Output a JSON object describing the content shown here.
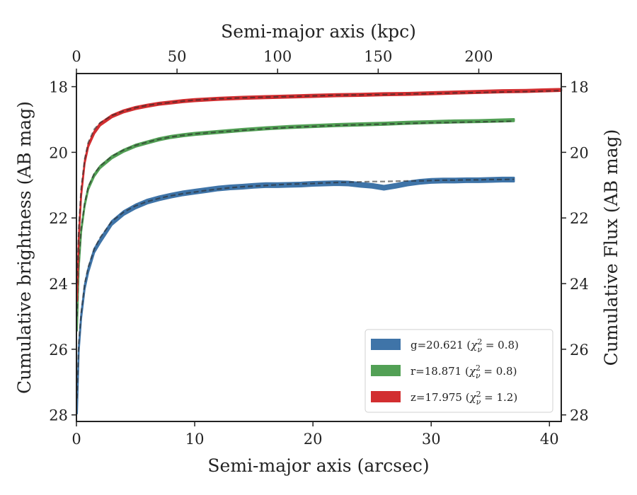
{
  "chart_data": {
    "type": "line",
    "xlabel": "Semi-major axis (arcsec)",
    "ylabel": "Cumulative brightness (AB mag)",
    "x2label": "Semi-major axis (kpc)",
    "y2label": "Cumulative Flux (AB mag)",
    "xlim": [
      0,
      41
    ],
    "ylim": [
      28.2,
      17.6
    ],
    "x2lim": [
      0,
      241
    ],
    "xticks": [
      0,
      10,
      20,
      30,
      40
    ],
    "x2ticks": [
      0,
      50,
      100,
      150,
      200
    ],
    "yticks": [
      18,
      20,
      22,
      24,
      26,
      28
    ],
    "y_inverted": true,
    "grid": false,
    "legend_position": "lower-right",
    "series": [
      {
        "name": "g=20.621",
        "chi2": "0.8",
        "color": "#3f74a8",
        "band_halfwidth": 0.06,
        "x": [
          0.05,
          0.2,
          0.4,
          0.7,
          1,
          1.5,
          2,
          3,
          4,
          5,
          6,
          7,
          8,
          9,
          10,
          11,
          12,
          13,
          14,
          15,
          16,
          17,
          18,
          19,
          20,
          21,
          22,
          23,
          24,
          25,
          26,
          27,
          28,
          29,
          30,
          31,
          32,
          33,
          34,
          35,
          36,
          37
        ],
        "y": [
          27.9,
          26.0,
          25.0,
          24.1,
          23.6,
          23.0,
          22.7,
          22.15,
          21.85,
          21.65,
          21.5,
          21.4,
          21.32,
          21.25,
          21.2,
          21.15,
          21.1,
          21.07,
          21.05,
          21.02,
          21.0,
          21.0,
          20.99,
          20.98,
          20.96,
          20.95,
          20.94,
          20.95,
          20.99,
          21.02,
          21.08,
          21.02,
          20.95,
          20.9,
          20.87,
          20.86,
          20.86,
          20.85,
          20.85,
          20.84,
          20.83,
          20.83
        ],
        "model_y": [
          27.5,
          25.8,
          24.9,
          24.0,
          23.5,
          22.95,
          22.6,
          22.1,
          21.82,
          21.63,
          21.5,
          21.4,
          21.32,
          21.26,
          21.21,
          21.16,
          21.12,
          21.08,
          21.05,
          21.03,
          21.01,
          20.99,
          20.97,
          20.96,
          20.95,
          20.93,
          20.92,
          20.91,
          20.9,
          20.89,
          20.89,
          20.88,
          20.87,
          20.87,
          20.86,
          20.85,
          20.85,
          20.84,
          20.84,
          20.83,
          20.83,
          20.82
        ]
      },
      {
        "name": "r=18.871",
        "chi2": "0.8",
        "color": "#52a055",
        "band_halfwidth": 0.035,
        "x": [
          0.05,
          0.2,
          0.4,
          0.7,
          1,
          1.5,
          2,
          3,
          4,
          5,
          6,
          7,
          8,
          9,
          10,
          12,
          14,
          16,
          18,
          20,
          22,
          24,
          26,
          28,
          30,
          32,
          34,
          36,
          37
        ],
        "y": [
          25.4,
          23.5,
          22.4,
          21.6,
          21.1,
          20.7,
          20.45,
          20.15,
          19.95,
          19.8,
          19.7,
          19.6,
          19.53,
          19.48,
          19.44,
          19.38,
          19.32,
          19.27,
          19.23,
          19.2,
          19.17,
          19.15,
          19.13,
          19.1,
          19.08,
          19.06,
          19.05,
          19.03,
          19.02
        ],
        "model_y": [
          25.0,
          23.3,
          22.3,
          21.55,
          21.05,
          20.65,
          20.42,
          20.12,
          19.93,
          19.79,
          19.69,
          19.6,
          19.53,
          19.48,
          19.44,
          19.38,
          19.33,
          19.28,
          19.24,
          19.21,
          19.18,
          19.16,
          19.14,
          19.12,
          19.1,
          19.09,
          19.07,
          19.06,
          19.05
        ]
      },
      {
        "name": "z=17.975",
        "chi2": "1.2",
        "color": "#d22e30",
        "band_halfwidth": 0.035,
        "x": [
          0.05,
          0.2,
          0.4,
          0.7,
          1,
          1.5,
          2,
          3,
          4,
          5,
          6,
          7,
          8,
          9,
          10,
          12,
          14,
          16,
          18,
          20,
          22,
          24,
          26,
          28,
          30,
          32,
          34,
          36,
          38,
          40,
          41
        ],
        "y": [
          24.5,
          22.6,
          21.3,
          20.3,
          19.8,
          19.4,
          19.15,
          18.9,
          18.75,
          18.65,
          18.58,
          18.52,
          18.48,
          18.44,
          18.41,
          18.37,
          18.34,
          18.32,
          18.3,
          18.28,
          18.26,
          18.25,
          18.23,
          18.22,
          18.2,
          18.18,
          18.16,
          18.14,
          18.13,
          18.11,
          18.1
        ],
        "model_y": [
          24.0,
          22.3,
          21.1,
          20.2,
          19.7,
          19.3,
          19.1,
          18.88,
          18.74,
          18.64,
          18.57,
          18.52,
          18.48,
          18.44,
          18.41,
          18.37,
          18.34,
          18.32,
          18.3,
          18.28,
          18.26,
          18.25,
          18.24,
          18.22,
          18.21,
          18.19,
          18.18,
          18.16,
          18.15,
          18.13,
          18.12
        ]
      }
    ]
  }
}
